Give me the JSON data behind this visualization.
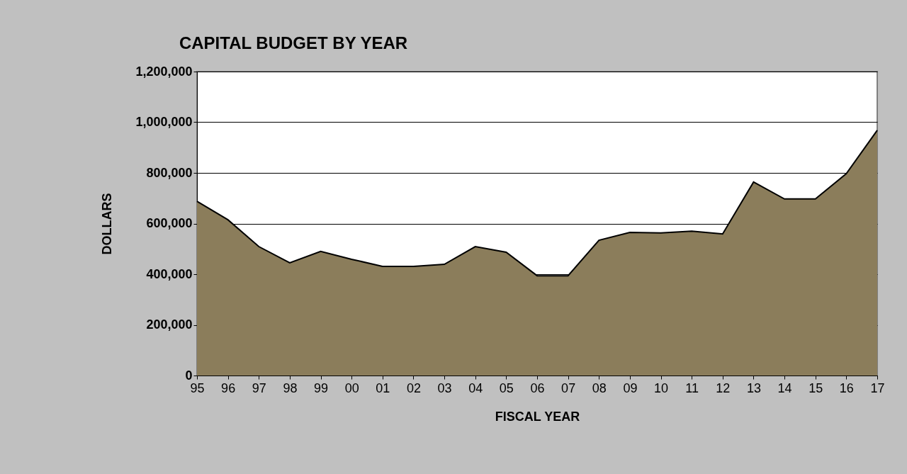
{
  "chart_data": {
    "type": "area",
    "title": "CAPITAL BUDGET BY YEAR",
    "xlabel": "FISCAL YEAR",
    "ylabel": "DOLLARS",
    "categories": [
      "95",
      "96",
      "97",
      "98",
      "99",
      "00",
      "01",
      "02",
      "03",
      "04",
      "05",
      "06",
      "07",
      "08",
      "09",
      "10",
      "11",
      "12",
      "13",
      "14",
      "15",
      "16",
      "17"
    ],
    "series": [
      {
        "color": "#8b7d5b",
        "values": [
          688000,
          615000,
          509000,
          445000,
          490000,
          459000,
          431000,
          431000,
          439000,
          509000,
          487000,
          394000,
          394000,
          534000,
          565000,
          563000,
          570000,
          559000,
          764000,
          697000,
          697000,
          797000,
          968000
        ]
      }
    ],
    "ylim": [
      0,
      1200000
    ],
    "yticks": [
      0,
      {
        "value": 200000,
        "label": "200,000"
      },
      {
        "value": 400000,
        "label": "400,000"
      },
      {
        "value": 600000,
        "label": "600,000"
      },
      {
        "value": 800000,
        "label": "800,000"
      },
      {
        "value": 1000000,
        "label": "1,000,000"
      },
      {
        "value": 1200000,
        "label": "1,200,000"
      }
    ],
    "grid": "y"
  }
}
